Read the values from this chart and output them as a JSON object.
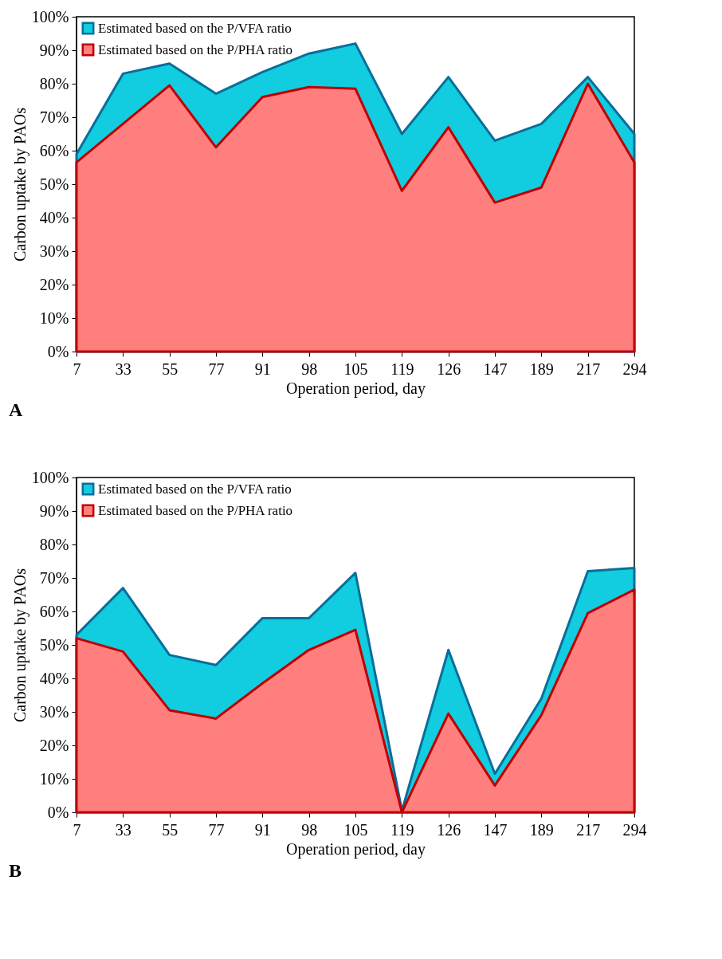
{
  "chart_data": [
    {
      "type": "area",
      "xlabel": "Operation period, day",
      "ylabel": "Carbon uptake by PAOs",
      "annotations": [
        "A"
      ],
      "legend": "top left",
      "categories": [
        "7",
        "33",
        "55",
        "77",
        "91",
        "98",
        "105",
        "119",
        "126",
        "147",
        "189",
        "217",
        "294"
      ],
      "ylim": [
        0,
        100
      ],
      "yticks": [
        {
          "value": 0,
          "label": "0%"
        },
        {
          "value": 10,
          "label": "10%"
        },
        {
          "value": 20,
          "label": "20%"
        },
        {
          "value": 30,
          "label": "30%"
        },
        {
          "value": 40,
          "label": "40%"
        },
        {
          "value": 50,
          "label": "50%"
        },
        {
          "value": 60,
          "label": "60%"
        },
        {
          "value": 70,
          "label": "70%"
        },
        {
          "value": 80,
          "label": "80%"
        },
        {
          "value": 90,
          "label": "90%"
        },
        {
          "value": 100,
          "label": "100%"
        }
      ],
      "series": [
        {
          "name": "Estimated based on the P/VFA ratio",
          "color": "#12cce0",
          "values": [
            59,
            83,
            86,
            77,
            83.5,
            89,
            92,
            65,
            82,
            63,
            68,
            82,
            65
          ]
        },
        {
          "name": "Estimated based on the P/PHA ratio",
          "color": "#ff7f7f",
          "values": [
            56.5,
            68,
            79.5,
            61,
            76,
            79,
            78.5,
            48,
            67,
            44.5,
            49,
            80,
            56.5
          ]
        }
      ]
    },
    {
      "type": "area",
      "xlabel": "Operation period, day",
      "ylabel": "Carbon uptake by PAOs",
      "annotations": [
        "B"
      ],
      "legend": "top left",
      "categories": [
        "7",
        "33",
        "55",
        "77",
        "91",
        "98",
        "105",
        "119",
        "126",
        "147",
        "189",
        "217",
        "294"
      ],
      "ylim": [
        0,
        100
      ],
      "yticks": [
        {
          "value": 0,
          "label": "0%"
        },
        {
          "value": 10,
          "label": "10%"
        },
        {
          "value": 20,
          "label": "20%"
        },
        {
          "value": 30,
          "label": "30%"
        },
        {
          "value": 40,
          "label": "40%"
        },
        {
          "value": 50,
          "label": "50%"
        },
        {
          "value": 60,
          "label": "60%"
        },
        {
          "value": 70,
          "label": "70%"
        },
        {
          "value": 80,
          "label": "80%"
        },
        {
          "value": 90,
          "label": "90%"
        },
        {
          "value": 100,
          "label": "100%"
        }
      ],
      "series": [
        {
          "name": "Estimated based on the P/VFA ratio",
          "color": "#12cce0",
          "values": [
            53,
            67,
            47,
            44,
            58,
            58,
            71.5,
            0.5,
            48.5,
            11.5,
            34,
            72,
            73
          ]
        },
        {
          "name": "Estimated based on the P/PHA ratio",
          "color": "#ff7f7f",
          "values": [
            52,
            48,
            30.5,
            28,
            38.5,
            48.5,
            54.5,
            0,
            29.5,
            8,
            29,
            59.5,
            66.5
          ]
        }
      ]
    }
  ]
}
